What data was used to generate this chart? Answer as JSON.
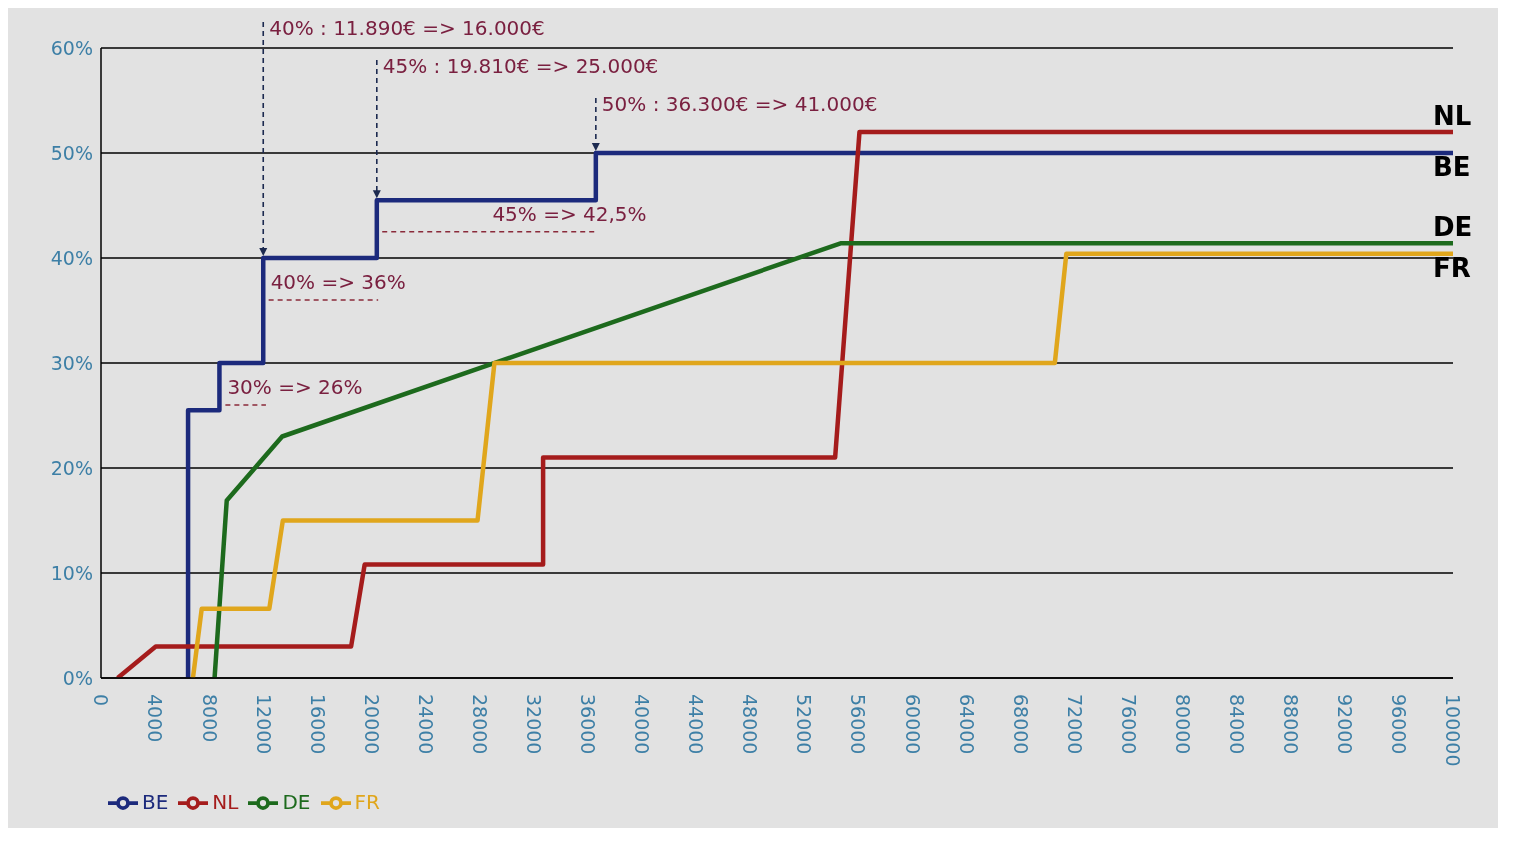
{
  "chart_data": {
    "type": "line",
    "xlim": [
      0,
      100000
    ],
    "xticks": [
      0,
      4000,
      8000,
      12000,
      16000,
      20000,
      24000,
      28000,
      32000,
      36000,
      40000,
      44000,
      48000,
      52000,
      56000,
      60000,
      64000,
      68000,
      72000,
      76000,
      80000,
      84000,
      88000,
      92000,
      96000,
      100000
    ],
    "ylim": [
      0,
      60
    ],
    "yticks": [
      {
        "value": 0,
        "label": "0%"
      },
      {
        "value": 10,
        "label": "10%"
      },
      {
        "value": 20,
        "label": "20%"
      },
      {
        "value": 30,
        "label": "30%"
      },
      {
        "value": 40,
        "label": "40%"
      },
      {
        "value": 50,
        "label": "50%"
      },
      {
        "value": 60,
        "label": "60%"
      }
    ],
    "grid": "y",
    "legend": "bottom left",
    "marker": "none",
    "line_style": "solid",
    "series": [
      {
        "name": "BE",
        "color": "#1c2a7c",
        "x": [
          6440,
          6440,
          8760,
          8760,
          12000,
          12000,
          20400,
          20400,
          36600,
          36600,
          100000
        ],
        "values": [
          0,
          25.5,
          25.5,
          30,
          30,
          40,
          40,
          45.5,
          45.5,
          50,
          50
        ]
      },
      {
        "name": "NL",
        "color": "#a51c1c",
        "x": [
          1230,
          4050,
          18500,
          19500,
          32700,
          32700,
          54300,
          56100,
          100000
        ],
        "values": [
          0,
          3,
          3,
          10.8,
          10.8,
          21,
          21,
          52,
          52
        ]
      },
      {
        "name": "DE",
        "color": "#1d6a1d",
        "x": [
          8400,
          9300,
          13400,
          54700,
          100000
        ],
        "values": [
          0,
          16.9,
          23,
          41.4,
          41.4
        ]
      },
      {
        "name": "FR",
        "color": "#e0a61c",
        "x": [
          6800,
          7450,
          12450,
          13450,
          27850,
          29100,
          70550,
          71400,
          100000
        ],
        "values": [
          0,
          6.6,
          6.6,
          15,
          15,
          30,
          30,
          40.4,
          40.4
        ]
      },
      {
        "color": "#8a2a3a",
        "line_style": "dashed",
        "x": [
          9200,
          12200
        ],
        "values": [
          26,
          26
        ]
      },
      {
        "color": "#8a2a3a",
        "line_style": "dashed",
        "x": [
          12400,
          20500
        ],
        "values": [
          36,
          36
        ]
      },
      {
        "color": "#8a2a3a",
        "line_style": "dashed",
        "x": [
          20800,
          36600
        ],
        "values": [
          42.5,
          42.5
        ]
      }
    ],
    "annotations": [
      {
        "text": "40% : 11.890€ => 16.000€",
        "x": 12000,
        "y": 40
      },
      {
        "text": "45% : 19.810€ => 25.000€",
        "x": 20400,
        "y": 45.5
      },
      {
        "text": "50% : 36.300€ => 41.000€",
        "x": 36600,
        "y": 50
      },
      {
        "text": "30% => 26%",
        "x": 9200,
        "y": 26
      },
      {
        "text": "40% => 36%",
        "x": 12400,
        "y": 36
      },
      {
        "text": "45% => 42,5%",
        "x": 28800,
        "y": 42.5
      }
    ]
  }
}
